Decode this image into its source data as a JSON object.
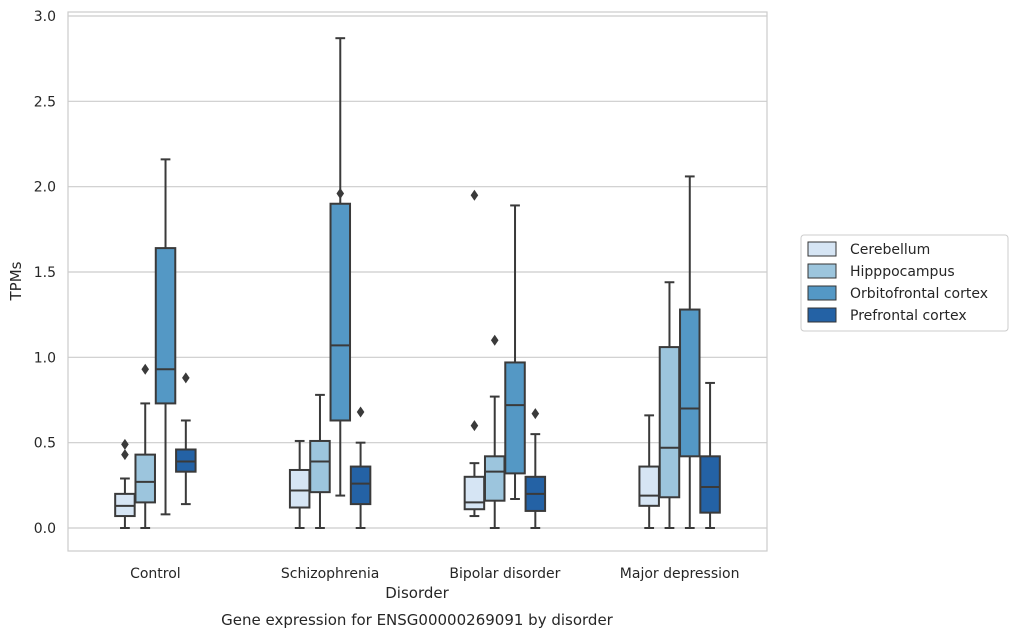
{
  "chart_data": {
    "type": "box",
    "title": "",
    "caption": "Gene expression for ENSG00000269091 by disorder",
    "xlabel": "Disorder",
    "ylabel": "TPMs",
    "ylim": [
      -0.14,
      3.02
    ],
    "yticks": [
      0.0,
      0.5,
      1.0,
      1.5,
      2.0,
      2.5,
      3.0
    ],
    "ytick_labels": [
      "0.0",
      "0.5",
      "1.0",
      "1.5",
      "2.0",
      "2.5",
      "3.0"
    ],
    "grid": "horizontal",
    "legend_position": "right",
    "categories": [
      "Control",
      "Schizophrenia",
      "Bipolar disorder",
      "Major depression"
    ],
    "series": [
      {
        "name": "Cerebellum",
        "color": "#d6e5f4",
        "boxes": [
          {
            "whislo": 0.0,
            "q1": 0.07,
            "med": 0.13,
            "q3": 0.2,
            "whishi": 0.29,
            "fliers": [
              0.43,
              0.49
            ]
          },
          {
            "whislo": 0.0,
            "q1": 0.12,
            "med": 0.22,
            "q3": 0.34,
            "whishi": 0.51,
            "fliers": []
          },
          {
            "whislo": 0.07,
            "q1": 0.11,
            "med": 0.15,
            "q3": 0.3,
            "whishi": 0.38,
            "fliers": [
              0.6,
              1.95
            ]
          },
          {
            "whislo": 0.0,
            "q1": 0.13,
            "med": 0.19,
            "q3": 0.36,
            "whishi": 0.66,
            "fliers": []
          }
        ]
      },
      {
        "name": "Hipppocampus",
        "color": "#9cc5dd",
        "boxes": [
          {
            "whislo": 0.0,
            "q1": 0.15,
            "med": 0.27,
            "q3": 0.43,
            "whishi": 0.73,
            "fliers": [
              0.93
            ]
          },
          {
            "whislo": 0.0,
            "q1": 0.21,
            "med": 0.39,
            "q3": 0.51,
            "whishi": 0.78,
            "fliers": []
          },
          {
            "whislo": 0.0,
            "q1": 0.16,
            "med": 0.33,
            "q3": 0.42,
            "whishi": 0.77,
            "fliers": [
              1.1
            ]
          },
          {
            "whislo": 0.0,
            "q1": 0.18,
            "med": 0.47,
            "q3": 1.06,
            "whishi": 1.44,
            "fliers": []
          }
        ]
      },
      {
        "name": "Orbitofrontal cortex",
        "color": "#5498c5",
        "boxes": [
          {
            "whislo": 0.08,
            "q1": 0.73,
            "med": 0.93,
            "q3": 1.64,
            "whishi": 2.16,
            "fliers": []
          },
          {
            "whislo": 0.19,
            "q1": 0.63,
            "med": 1.07,
            "q3": 1.9,
            "whishi": 2.87,
            "fliers": [
              1.96
            ]
          },
          {
            "whislo": 0.17,
            "q1": 0.32,
            "med": 0.72,
            "q3": 0.97,
            "whishi": 1.89,
            "fliers": []
          },
          {
            "whislo": 0.0,
            "q1": 0.42,
            "med": 0.7,
            "q3": 1.28,
            "whishi": 2.06,
            "fliers": []
          }
        ]
      },
      {
        "name": "Prefrontal cortex",
        "color": "#2462a5",
        "boxes": [
          {
            "whislo": 0.14,
            "q1": 0.33,
            "med": 0.39,
            "q3": 0.46,
            "whishi": 0.63,
            "fliers": [
              0.88
            ]
          },
          {
            "whislo": 0.0,
            "q1": 0.14,
            "med": 0.26,
            "q3": 0.36,
            "whishi": 0.5,
            "fliers": [
              0.68
            ]
          },
          {
            "whislo": 0.0,
            "q1": 0.1,
            "med": 0.2,
            "q3": 0.3,
            "whishi": 0.55,
            "fliers": [
              0.67
            ]
          },
          {
            "whislo": 0.0,
            "q1": 0.09,
            "med": 0.24,
            "q3": 0.42,
            "whishi": 0.85,
            "fliers": []
          }
        ]
      }
    ]
  }
}
